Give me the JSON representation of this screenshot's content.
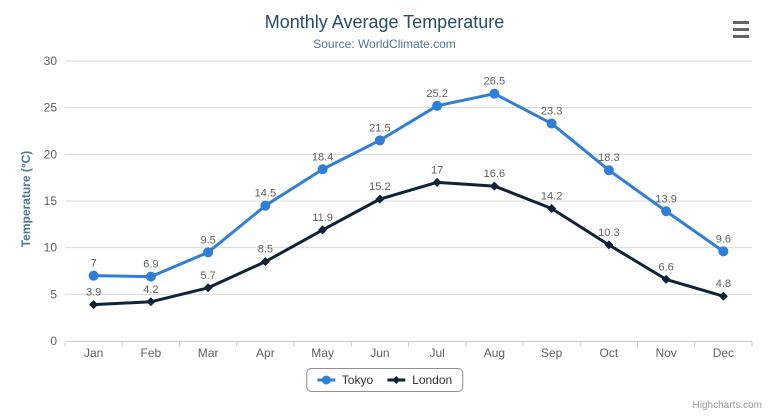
{
  "chart": {
    "title": "Monthly Average Temperature",
    "subtitle": "Source: WorldClimate.com",
    "y_axis_title": "Temperature (°C)",
    "credit": "Highcharts.com",
    "menu_icon": "hamburger-icon"
  },
  "chart_data": {
    "type": "line",
    "title": "Monthly Average Temperature",
    "subtitle": "Source: WorldClimate.com",
    "xlabel": "",
    "ylabel": "Temperature (°C)",
    "categories": [
      "Jan",
      "Feb",
      "Mar",
      "Apr",
      "May",
      "Jun",
      "Jul",
      "Aug",
      "Sep",
      "Oct",
      "Nov",
      "Dec"
    ],
    "series": [
      {
        "name": "Tokyo",
        "color": "#2f7ed8",
        "marker": "circle",
        "values": [
          7,
          6.9,
          9.5,
          14.5,
          18.4,
          21.5,
          25.2,
          26.5,
          23.3,
          18.3,
          13.9,
          9.6
        ]
      },
      {
        "name": "London",
        "color": "#0d233a",
        "marker": "diamond",
        "values": [
          3.9,
          4.2,
          5.7,
          8.5,
          11.9,
          15.2,
          17,
          16.6,
          14.2,
          10.3,
          6.6,
          4.8
        ]
      }
    ],
    "ylim": [
      0,
      30
    ],
    "y_tick_interval": 5,
    "grid": true,
    "data_labels": true,
    "legend_position": "bottom-center"
  },
  "colors": {
    "title": "#274b6d",
    "subtitle": "#4d759e",
    "axis_title": "#4d759e",
    "axis_label": "#606060",
    "data_label": "#606060",
    "grid_line": "#d8d8d8",
    "axis_line": "#c0d0e0",
    "legend_border": "#909090",
    "legend_text": "#333333",
    "credit": "#999999",
    "menu_icon": "#666666"
  }
}
